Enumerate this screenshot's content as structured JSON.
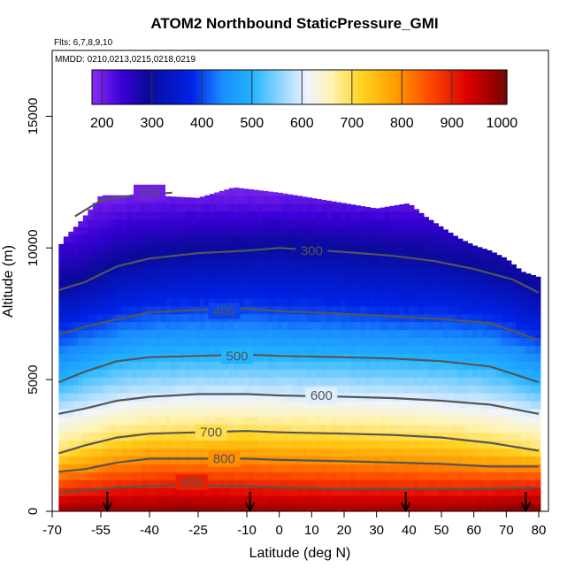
{
  "chart_data": {
    "type": "heatmap",
    "title": "ATOM2 Northbound StaticPressure_GMI",
    "flights_note": "Flts: 6,7,8,9,10",
    "dates_note": "MMDD: 0210,0213,0215,0218,0219",
    "xlabel": "Latitude (deg N)",
    "ylabel": "Altitude (m)",
    "xlim": [
      -70,
      83
    ],
    "ylim": [
      0,
      17500
    ],
    "x_ticks": [
      -70,
      -55,
      -40,
      -25,
      -10,
      0,
      10,
      20,
      30,
      40,
      50,
      60,
      70,
      80
    ],
    "y_ticks": [
      0,
      5000,
      10000,
      15000
    ],
    "colorbar": {
      "min": 180,
      "max": 1010,
      "ticks": [
        200,
        300,
        400,
        500,
        600,
        700,
        800,
        900,
        1000
      ],
      "color_stops": [
        {
          "value": 180,
          "color": "#8b2cf5"
        },
        {
          "value": 240,
          "color": "#3a00d6"
        },
        {
          "value": 290,
          "color": "#0a0a9a"
        },
        {
          "value": 380,
          "color": "#0022e6"
        },
        {
          "value": 440,
          "color": "#1a8cff"
        },
        {
          "value": 500,
          "color": "#22b4ff"
        },
        {
          "value": 570,
          "color": "#a8dcff"
        },
        {
          "value": 610,
          "color": "#eef4ff"
        },
        {
          "value": 660,
          "color": "#fff3b0"
        },
        {
          "value": 720,
          "color": "#ffd21e"
        },
        {
          "value": 790,
          "color": "#ff9a00"
        },
        {
          "value": 850,
          "color": "#ff5000"
        },
        {
          "value": 930,
          "color": "#dd0000"
        },
        {
          "value": 1010,
          "color": "#7a0000"
        }
      ]
    },
    "data_extent": {
      "lat_min": -68,
      "lat_max": 80
    },
    "top_altitude_profile": [
      {
        "lat": -68,
        "alt": 10000
      },
      {
        "lat": -66,
        "alt": 10400
      },
      {
        "lat": -62,
        "alt": 10900
      },
      {
        "lat": -58,
        "alt": 11500
      },
      {
        "lat": -55,
        "alt": 12000
      },
      {
        "lat": -40,
        "alt": 12000
      },
      {
        "lat": -25,
        "alt": 11900
      },
      {
        "lat": -14,
        "alt": 12300
      },
      {
        "lat": 0,
        "alt": 12100
      },
      {
        "lat": 20,
        "alt": 11700
      },
      {
        "lat": 30,
        "alt": 11500
      },
      {
        "lat": 40,
        "alt": 11700
      },
      {
        "lat": 45,
        "alt": 11200
      },
      {
        "lat": 50,
        "alt": 10800
      },
      {
        "lat": 55,
        "alt": 10400
      },
      {
        "lat": 60,
        "alt": 10100
      },
      {
        "lat": 65,
        "alt": 9900
      },
      {
        "lat": 70,
        "alt": 9600
      },
      {
        "lat": 75,
        "alt": 9100
      },
      {
        "lat": 80,
        "alt": 8900
      }
    ],
    "contours": [
      {
        "level": 200,
        "label": "200",
        "label_lat": -40,
        "label_alt": 12100,
        "points": [
          [
            -63,
            11200
          ],
          [
            -55,
            11800
          ],
          [
            -45,
            12000
          ],
          [
            -33,
            12100
          ]
        ]
      },
      {
        "level": 300,
        "label": "300",
        "label_lat": 10,
        "label_alt": 9900,
        "points": [
          [
            -68,
            8400
          ],
          [
            -60,
            8700
          ],
          [
            -50,
            9300
          ],
          [
            -40,
            9600
          ],
          [
            -25,
            9800
          ],
          [
            -10,
            9900
          ],
          [
            0,
            10000
          ],
          [
            20,
            9850
          ],
          [
            35,
            9700
          ],
          [
            48,
            9500
          ],
          [
            60,
            9200
          ],
          [
            72,
            8800
          ],
          [
            80,
            8300
          ]
        ]
      },
      {
        "level": 400,
        "label": "400",
        "label_lat": -17,
        "label_alt": 7600,
        "points": [
          [
            -68,
            6700
          ],
          [
            -60,
            7000
          ],
          [
            -50,
            7300
          ],
          [
            -40,
            7550
          ],
          [
            -25,
            7650
          ],
          [
            -10,
            7700
          ],
          [
            0,
            7600
          ],
          [
            20,
            7500
          ],
          [
            35,
            7400
          ],
          [
            50,
            7300
          ],
          [
            65,
            7150
          ],
          [
            80,
            6500
          ]
        ]
      },
      {
        "level": 500,
        "label": "500",
        "label_lat": -13,
        "label_alt": 5900,
        "points": [
          [
            -68,
            4900
          ],
          [
            -60,
            5300
          ],
          [
            -50,
            5700
          ],
          [
            -40,
            5850
          ],
          [
            -25,
            5900
          ],
          [
            -10,
            5950
          ],
          [
            0,
            5900
          ],
          [
            20,
            5850
          ],
          [
            35,
            5800
          ],
          [
            50,
            5700
          ],
          [
            65,
            5500
          ],
          [
            80,
            4900
          ]
        ]
      },
      {
        "level": 600,
        "label": "600",
        "label_lat": 13,
        "label_alt": 4400,
        "points": [
          [
            -68,
            3700
          ],
          [
            -60,
            3900
          ],
          [
            -50,
            4200
          ],
          [
            -40,
            4350
          ],
          [
            -25,
            4450
          ],
          [
            -10,
            4450
          ],
          [
            0,
            4400
          ],
          [
            20,
            4350
          ],
          [
            35,
            4300
          ],
          [
            50,
            4200
          ],
          [
            65,
            4050
          ],
          [
            80,
            3700
          ]
        ]
      },
      {
        "level": 700,
        "label": "700",
        "label_lat": -21,
        "label_alt": 3000,
        "points": [
          [
            -68,
            2200
          ],
          [
            -60,
            2500
          ],
          [
            -50,
            2800
          ],
          [
            -40,
            2950
          ],
          [
            -25,
            3000
          ],
          [
            -10,
            3050
          ],
          [
            0,
            3000
          ],
          [
            20,
            2950
          ],
          [
            35,
            2900
          ],
          [
            50,
            2800
          ],
          [
            65,
            2600
          ],
          [
            80,
            2300
          ]
        ]
      },
      {
        "level": 800,
        "label": "800",
        "label_lat": -17,
        "label_alt": 2000,
        "points": [
          [
            -68,
            1500
          ],
          [
            -60,
            1600
          ],
          [
            -50,
            1850
          ],
          [
            -40,
            2000
          ],
          [
            -25,
            2000
          ],
          [
            -10,
            2000
          ],
          [
            0,
            1950
          ],
          [
            20,
            1900
          ],
          [
            35,
            1850
          ],
          [
            50,
            1800
          ],
          [
            65,
            1700
          ],
          [
            80,
            1700
          ]
        ]
      },
      {
        "level": 900,
        "label": "900",
        "label_lat": -27,
        "label_alt": 1100,
        "points": [
          [
            -68,
            700
          ],
          [
            -60,
            800
          ],
          [
            -50,
            900
          ],
          [
            -40,
            950
          ],
          [
            -30,
            1000
          ],
          [
            -10,
            950
          ],
          [
            0,
            900
          ],
          [
            20,
            850
          ],
          [
            40,
            850
          ],
          [
            60,
            850
          ],
          [
            80,
            900
          ]
        ]
      }
    ],
    "arrows_lat": [
      -53,
      -9,
      39,
      76
    ]
  }
}
